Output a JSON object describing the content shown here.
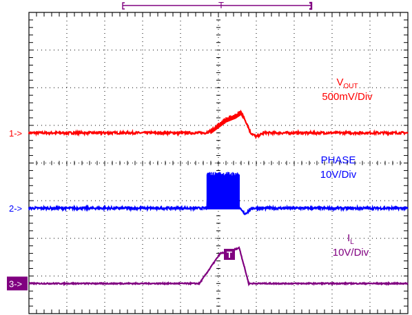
{
  "chart_data": {
    "type": "line",
    "x_divisions": 10,
    "y_divisions": 8,
    "grid": true,
    "trigger_marker": "T",
    "series": [
      {
        "name": "V_OUT",
        "marker_label": "1->",
        "color": "#ff0000",
        "label": {
          "main": "V",
          "sub": "OUT",
          "scale": "500mV/Div"
        },
        "baseline_div": 4.8,
        "noise_div": 0.03,
        "points": [
          [
            0,
            0
          ],
          [
            4.65,
            0
          ],
          [
            4.8,
            0.05
          ],
          [
            5.0,
            0.2
          ],
          [
            5.2,
            0.35
          ],
          [
            5.45,
            0.45
          ],
          [
            5.6,
            0.55
          ],
          [
            5.75,
            0.25
          ],
          [
            5.85,
            0.0
          ],
          [
            6.0,
            -0.1
          ],
          [
            6.2,
            0.0
          ],
          [
            10,
            0
          ]
        ],
        "burst": [
          4.8,
          5.65,
          0.25
        ]
      },
      {
        "name": "PHASE",
        "marker_label": "2->",
        "color": "#0000ff",
        "label": {
          "main": "PHASE",
          "sub": "",
          "scale": "10V/Div"
        },
        "baseline_div": 2.8,
        "noise_div": 0.03,
        "points": [
          [
            0,
            0
          ],
          [
            4.7,
            0
          ],
          [
            4.72,
            0.4
          ],
          [
            5.5,
            0.4
          ],
          [
            5.55,
            0
          ],
          [
            5.7,
            -0.15
          ],
          [
            5.9,
            0
          ],
          [
            10,
            0
          ]
        ],
        "burst": [
          4.7,
          5.55,
          0.95
        ]
      },
      {
        "name": "I_L",
        "marker_label": "3->",
        "color": "#800080",
        "label": {
          "main": "I",
          "sub": "L",
          "scale": "10V/Div"
        },
        "baseline_div": 0.8,
        "noise_div": 0.015,
        "points": [
          [
            0,
            0
          ],
          [
            4.5,
            0
          ],
          [
            5.05,
            0.8
          ],
          [
            5.3,
            0.85
          ],
          [
            5.55,
            0.95
          ],
          [
            5.8,
            0
          ],
          [
            10,
            0
          ]
        ],
        "burst": null
      }
    ]
  }
}
